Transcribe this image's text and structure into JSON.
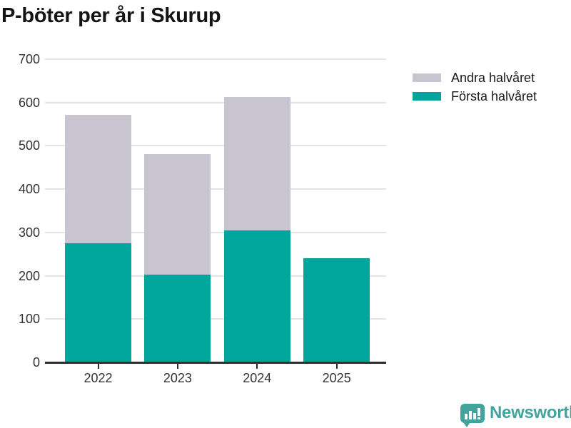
{
  "title": "P-böter per år i Skurup",
  "chart_data": {
    "type": "bar",
    "stacked": true,
    "categories": [
      "2022",
      "2023",
      "2024",
      "2025"
    ],
    "series": [
      {
        "name": "Första halvåret",
        "color": "#00a59b",
        "values": [
          275,
          203,
          305,
          240
        ]
      },
      {
        "name": "Andra halvåret",
        "color": "#c8c5d0",
        "values": [
          296,
          278,
          307,
          0
        ]
      }
    ],
    "title": "P-böter per år i Skurup",
    "xlabel": "",
    "ylabel": "",
    "ylim": [
      0,
      700
    ],
    "yticks": [
      0,
      100,
      200,
      300,
      400,
      500,
      600,
      700
    ],
    "grid": true,
    "legend_position": "right",
    "legend_order": [
      "Andra halvåret",
      "Första halvåret"
    ]
  },
  "branding": {
    "logo_text": "Newsworthy",
    "logo_color": "#42a39c",
    "logo_icon": "speech-bubble-bar-chart-exclamation"
  }
}
